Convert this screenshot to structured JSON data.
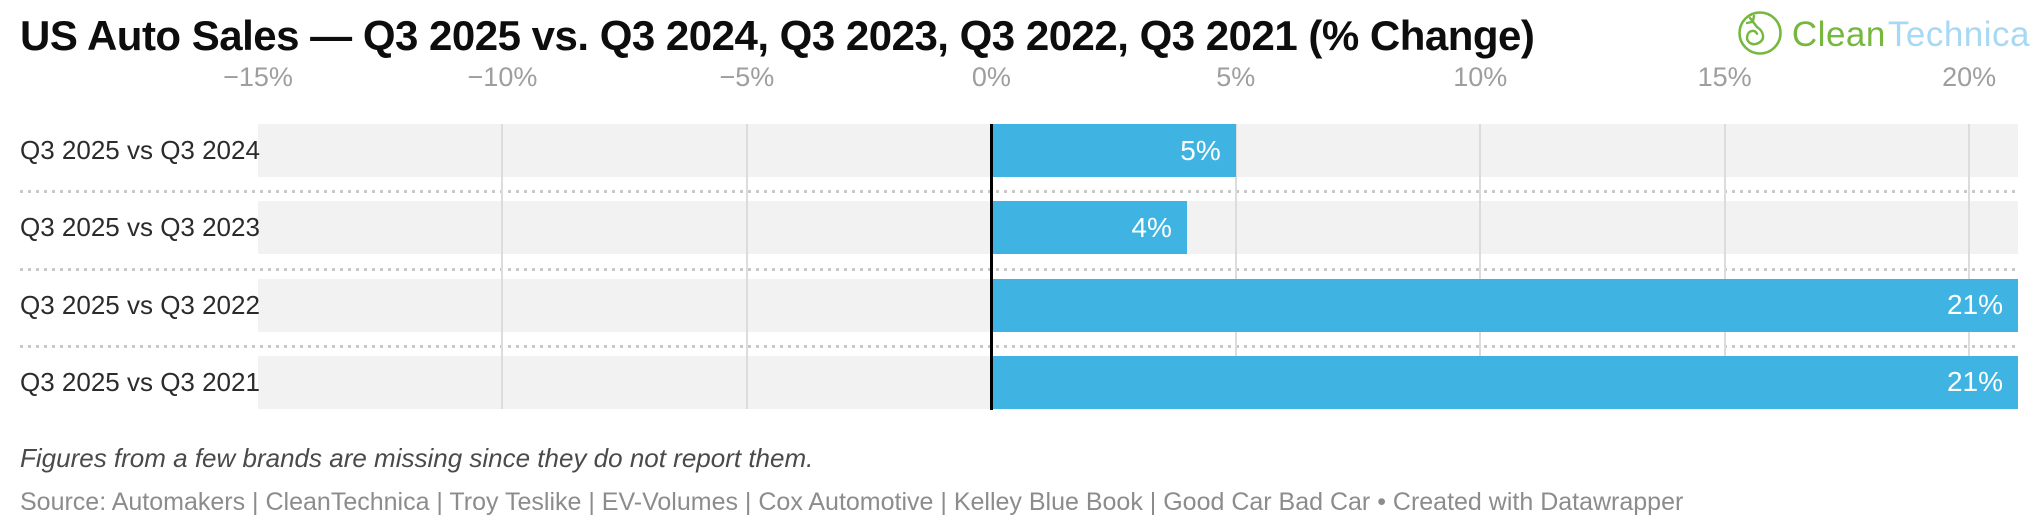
{
  "header": {
    "title": "US Auto Sales — Q3 2025 vs. Q3 2024, Q3 2023, Q3 2022, Q3 2021 (% Change)",
    "logo": {
      "part1": "Clean",
      "part2": "Technica",
      "green": "#76b83e",
      "blue": "#a7d9f4"
    }
  },
  "chart_data": {
    "type": "bar",
    "orientation": "horizontal",
    "title": "US Auto Sales — Q3 2025 vs. Q3 2024, Q3 2023, Q3 2022, Q3 2021 (% Change)",
    "categories": [
      "Q3 2025 vs Q3 2024",
      "Q3 2025 vs Q3 2023",
      "Q3 2025 vs Q3 2022",
      "Q3 2025 vs Q3 2021"
    ],
    "values": [
      5,
      4,
      21,
      21
    ],
    "value_labels": [
      "5%",
      "4%",
      "21%",
      "21%"
    ],
    "xlim": [
      -15,
      21
    ],
    "ticks": [
      {
        "v": -15,
        "label": "−15%"
      },
      {
        "v": -10,
        "label": "−10%"
      },
      {
        "v": -5,
        "label": "−5%"
      },
      {
        "v": 0,
        "label": "0%"
      },
      {
        "v": 5,
        "label": "5%"
      },
      {
        "v": 10,
        "label": "10%"
      },
      {
        "v": 15,
        "label": "15%"
      },
      {
        "v": 20,
        "label": "20%"
      }
    ],
    "grid": true,
    "legend": "none",
    "bar_color": "#3fb4e3",
    "track_color": "#f2f2f2",
    "zero_line_color": "#000000"
  },
  "footer": {
    "note": "Figures from a few brands are missing since they do not report them.",
    "source": "Source: Automakers | CleanTechnica | Troy Teslike | EV-Volumes | Cox Automotive | Kelley Blue Book | Good Car Bad Car • Created with Datawrapper"
  }
}
